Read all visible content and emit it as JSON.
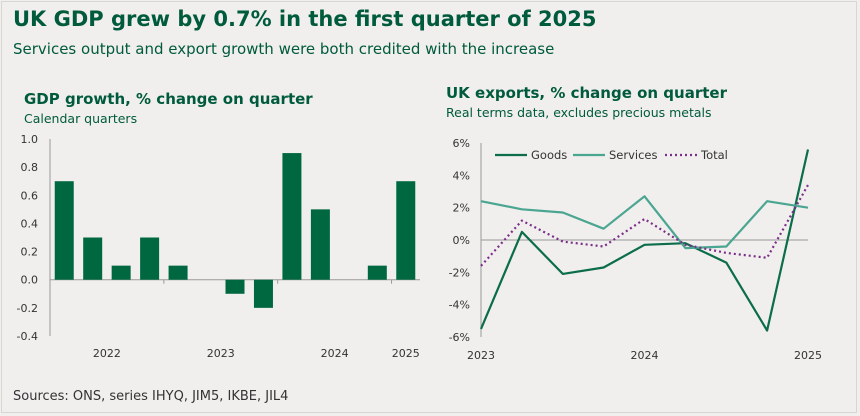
{
  "header": {
    "title": "UK GDP grew by 0.7% in the first quarter of 2025",
    "subtitle": "Services output and export growth were both credited with the increase"
  },
  "footer": {
    "source": "Sources: ONS, series IHYQ, JIM5, IKBE, JIL4"
  },
  "colors": {
    "gdp_bar": "#006841",
    "goods": "#0b6d4a",
    "services": "#4aa591",
    "total": "#7a2e88"
  },
  "chart_data": [
    {
      "type": "bar",
      "title": "GDP growth, % change on quarter",
      "subtitle": "Calendar quarters",
      "categories": [
        "2022 Q1",
        "2022 Q2",
        "2022 Q3",
        "2022 Q4",
        "2023 Q1",
        "2023 Q2",
        "2023 Q3",
        "2023 Q4",
        "2024 Q1",
        "2024 Q2",
        "2024 Q3",
        "2024 Q4",
        "2025 Q1"
      ],
      "values": [
        0.7,
        0.3,
        0.1,
        0.3,
        0.1,
        0.0,
        -0.1,
        -0.2,
        0.9,
        0.5,
        0.0,
        0.1,
        0.7
      ],
      "xtick_labels": [
        "2022",
        "2023",
        "2024",
        "2025"
      ],
      "ytick_labels": [
        "1.0",
        "0.8",
        "0.6",
        "0.4",
        "0.2",
        "0.0",
        "-0.2",
        "-0.4"
      ],
      "ylim": [
        -0.4,
        1.0
      ],
      "xlabel": "",
      "ylabel": ""
    },
    {
      "type": "line",
      "title": "UK exports, % change on quarter",
      "subtitle": "Real terms data, excludes precious metals",
      "x": [
        "2023 Q1",
        "2023 Q2",
        "2023 Q3",
        "2023 Q4",
        "2024 Q1",
        "2024 Q2",
        "2024 Q3",
        "2024 Q4",
        "2025 Q1"
      ],
      "series": [
        {
          "name": "Goods",
          "values": [
            -5.5,
            0.5,
            -2.1,
            -1.7,
            -0.3,
            -0.2,
            -1.4,
            -5.6,
            5.6
          ]
        },
        {
          "name": "Services",
          "values": [
            2.4,
            1.9,
            1.7,
            0.7,
            2.7,
            -0.5,
            -0.4,
            2.4,
            2.0
          ]
        },
        {
          "name": "Total",
          "values": [
            -1.6,
            1.2,
            -0.1,
            -0.4,
            1.3,
            -0.3,
            -0.8,
            -1.1,
            3.4
          ]
        }
      ],
      "xtick_labels": [
        "2023",
        "2024",
        "2025"
      ],
      "ytick_labels": [
        "6%",
        "4%",
        "2%",
        "0%",
        "-2%",
        "-4%",
        "-6%"
      ],
      "ylim": [
        -6,
        6
      ],
      "legend": "top-left",
      "xlabel": "",
      "ylabel": ""
    }
  ]
}
